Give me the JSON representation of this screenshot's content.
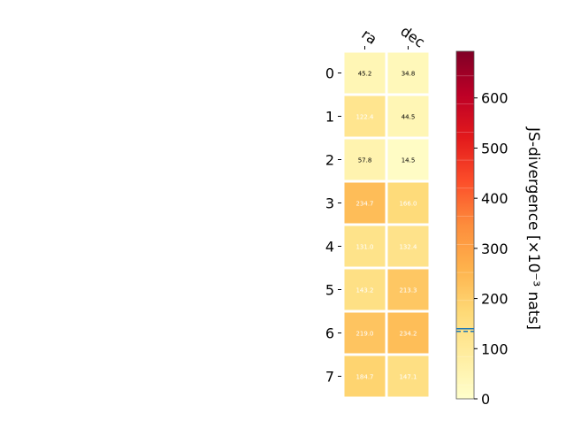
{
  "chart_data": {
    "type": "heatmap",
    "columns": [
      "ra",
      "dec"
    ],
    "rows": [
      "0",
      "1",
      "2",
      "3",
      "4",
      "5",
      "6",
      "7"
    ],
    "values": [
      [
        45.2,
        34.8
      ],
      [
        122.4,
        44.5
      ],
      [
        57.8,
        14.5
      ],
      [
        234.7,
        166.0
      ],
      [
        131.0,
        132.4
      ],
      [
        143.2,
        213.3
      ],
      [
        219.0,
        234.2
      ],
      [
        184.7,
        147.1
      ]
    ],
    "value_labels": [
      [
        "45.2",
        "34.8"
      ],
      [
        "122.4",
        "44.5"
      ],
      [
        "57.8",
        "14.5"
      ],
      [
        "234.7",
        "166.0"
      ],
      [
        "131.0",
        "132.4"
      ],
      [
        "143.2",
        "213.3"
      ],
      [
        "219.0",
        "234.2"
      ],
      [
        "184.7",
        "147.1"
      ]
    ],
    "colorbar": {
      "label": "JS-divergence [×10⁻³ nats]",
      "ticks": [
        "0",
        "100",
        "200",
        "300",
        "400",
        "500",
        "600"
      ],
      "tick_values": [
        0,
        100,
        200,
        300,
        400,
        500,
        600
      ],
      "range": [
        0,
        693
      ],
      "marker_value": 137,
      "colormap": "YlOrRd",
      "marker_color": "#1f77b4"
    }
  }
}
